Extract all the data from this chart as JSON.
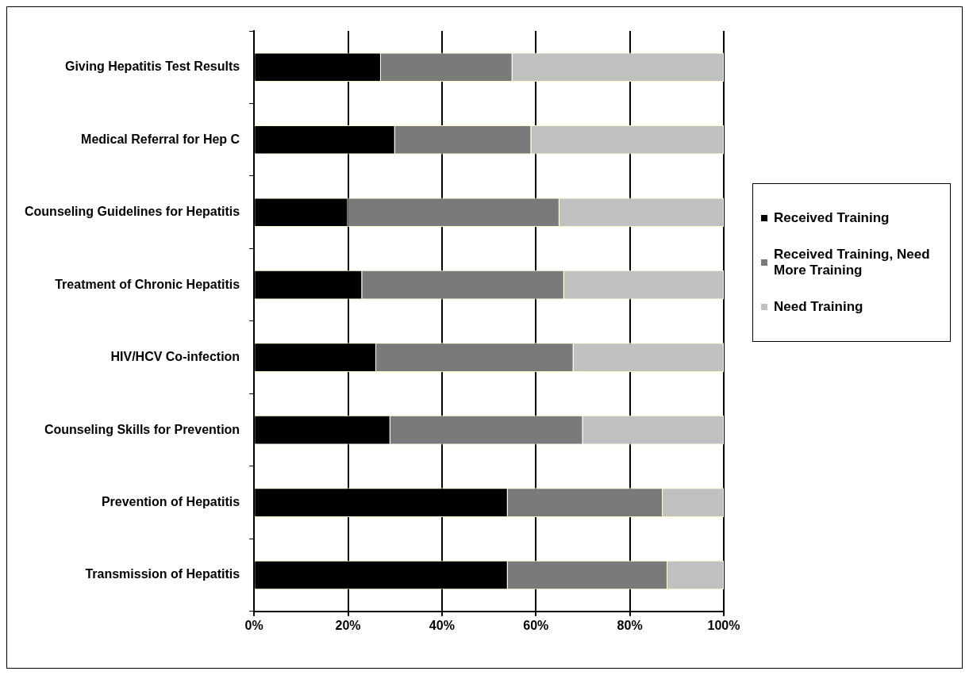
{
  "chart_data": {
    "type": "bar",
    "orientation": "horizontal",
    "stacked": true,
    "categories": [
      "Giving Hepatitis Test Results",
      "Medical Referral for Hep C",
      "Counseling Guidelines for Hepatitis",
      "Treatment of Chronic Hepatitis",
      "HIV/HCV Co-infection",
      "Counseling Skills for Prevention",
      "Prevention of Hepatitis",
      "Transmission of Hepatitis"
    ],
    "series": [
      {
        "name": "Received Training",
        "color": "#000000",
        "values": [
          27,
          30,
          20,
          23,
          26,
          29,
          54,
          54
        ]
      },
      {
        "name": "Received Training, Need More Training",
        "color": "#7a7a7a",
        "values": [
          28,
          29,
          45,
          43,
          42,
          41,
          33,
          34
        ]
      },
      {
        "name": "Need Training",
        "color": "#c0c0c0",
        "values": [
          45,
          41,
          35,
          34,
          32,
          30,
          13,
          12
        ]
      }
    ],
    "xlim": [
      0,
      100
    ],
    "xticks": [
      {
        "value": 0,
        "label": "0%"
      },
      {
        "value": 20,
        "label": "20%"
      },
      {
        "value": 40,
        "label": "40%"
      },
      {
        "value": 60,
        "label": "60%"
      },
      {
        "value": 80,
        "label": "80%"
      },
      {
        "value": 100,
        "label": "100%"
      }
    ],
    "grid": "x",
    "legend": "right"
  }
}
